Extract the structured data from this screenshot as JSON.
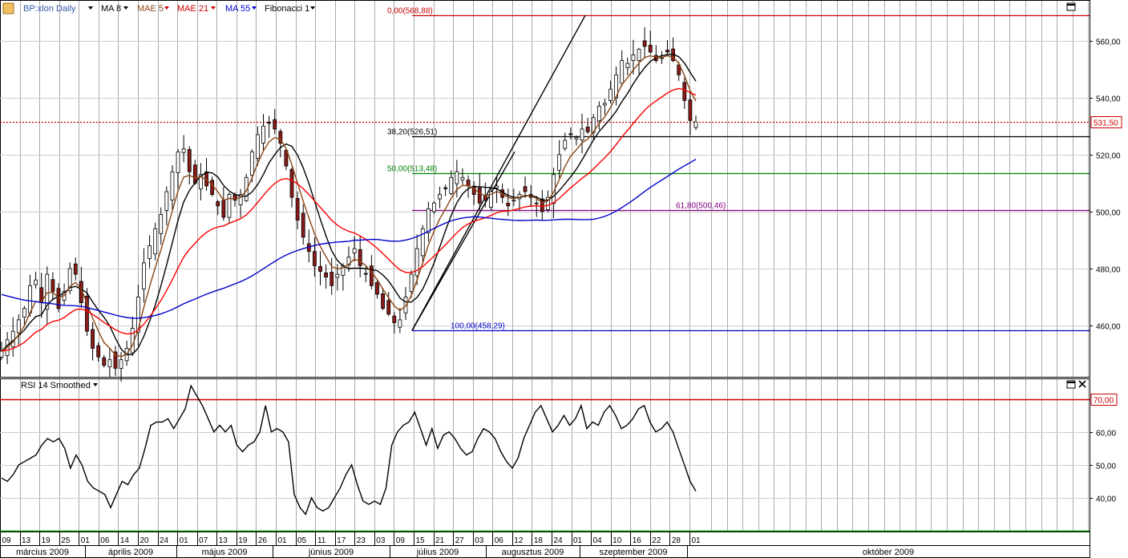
{
  "toolbar": {
    "symbol": "BP:xlon Daily",
    "ma8": "MA 8",
    "mae5": "MAE 5",
    "mae21": "MAE 21",
    "ma55": "MA 55",
    "fib": "Fibonacci 1",
    "rsi": "RSI 14 Smoothed"
  },
  "colors": {
    "bull": "#ffffff",
    "bear": "#8b1a1a",
    "ma8": "#000000",
    "mae5": "#8b4513",
    "mae21": "#ff0000",
    "ma55": "#0000cc",
    "fib0": "#cc0000",
    "fib382": "#000000",
    "fib50": "#008000",
    "fib618": "#800080",
    "fib100": "#0000cc",
    "grid": "#aaaaaa",
    "rsi": "#000000",
    "rsiLevel70": "#cc0000",
    "rsiLevel30": "#008000",
    "lastPrice": "#cc0000"
  },
  "price_axis": {
    "ylim": [
      442,
      574
    ],
    "ticks": [
      "460,00",
      "480,00",
      "500,00",
      "520,00",
      "540,00",
      "560,00"
    ],
    "tick_values": [
      460,
      480,
      500,
      520,
      540,
      560
    ],
    "last_price": 531.5,
    "last_price_label": "531,50"
  },
  "rsi_axis": {
    "ylim": [
      30,
      76
    ],
    "ticks": [
      "40,00",
      "50,00",
      "60,00"
    ],
    "tick_values": [
      40,
      50,
      60
    ],
    "level_70": 70,
    "level_70_label": "70,00",
    "level_30": 30
  },
  "x_axis": {
    "days": [
      "09",
      "13",
      "19",
      "25",
      "01",
      "06",
      "14",
      "20",
      "24",
      "01",
      "07",
      "13",
      "19",
      "26",
      "01",
      "05",
      "11",
      "17",
      "23",
      "03",
      "09",
      "15",
      "21",
      "27",
      "03",
      "06",
      "12",
      "18",
      "24",
      "01",
      "04",
      "10",
      "16",
      "22",
      "28",
      "01"
    ],
    "months": [
      "március 2009",
      "április 2009",
      "május 2009",
      "június 2009",
      "július 2009",
      "augusztus 2009",
      "szeptember 2009",
      "október 2009"
    ]
  },
  "chart_data": {
    "type": "candlestick",
    "title": "BP:xlon Daily",
    "fibonacci": [
      {
        "label": "0,00(568,88)",
        "value": 568.88
      },
      {
        "label": "38,20(526,51)",
        "value": 526.51
      },
      {
        "label": "50,00(513,48)",
        "value": 513.48
      },
      {
        "label": "61,80(500,46)",
        "value": 500.46
      },
      {
        "label": "100,00(458,29)",
        "value": 458.29
      }
    ],
    "closes": [
      451,
      455,
      458,
      462,
      466,
      474,
      476,
      468,
      478,
      472,
      466,
      472,
      480,
      478,
      468,
      458,
      452,
      449,
      446,
      448,
      445,
      448,
      452,
      459,
      470,
      482,
      488,
      494,
      499,
      507,
      514,
      521,
      522,
      514,
      510,
      513,
      509,
      506,
      502,
      498,
      506,
      504,
      506,
      512,
      521,
      527,
      530,
      531,
      529,
      524,
      516,
      505,
      497,
      491,
      486,
      481,
      479,
      477,
      474,
      478,
      481,
      484,
      487,
      481,
      478,
      474,
      471,
      466,
      464,
      461,
      462,
      470,
      478,
      487,
      494,
      501,
      503,
      506,
      508,
      512,
      514,
      512,
      509,
      506,
      503,
      504,
      507,
      509,
      505,
      502,
      504,
      506,
      507,
      505,
      503,
      500,
      505,
      513,
      520,
      525,
      527,
      526,
      529,
      528,
      533,
      537,
      538,
      543,
      548,
      553,
      552,
      555,
      557,
      558,
      556,
      553,
      554,
      556,
      553,
      548,
      539,
      532,
      531.5
    ],
    "rsi": [
      46,
      45,
      47,
      50,
      51,
      52,
      53,
      56,
      58,
      57,
      58,
      55,
      49,
      53,
      50,
      45,
      43,
      42,
      41,
      37,
      41,
      45,
      44,
      47,
      49,
      55,
      62,
      63,
      63,
      64,
      61,
      64,
      67,
      74,
      71,
      68,
      64,
      60,
      62,
      60,
      62,
      56,
      54,
      56,
      57,
      60,
      68,
      60,
      61,
      60,
      57,
      41,
      37,
      35,
      40,
      37,
      36,
      37,
      40,
      43,
      47,
      50,
      44,
      39,
      38,
      39,
      38,
      43,
      56,
      60,
      62,
      63,
      66,
      61,
      56,
      61,
      55,
      59,
      60,
      58,
      55,
      53,
      54,
      58,
      61,
      60,
      58,
      54,
      51,
      49,
      52,
      58,
      62,
      66,
      68,
      64,
      60,
      62,
      65,
      62,
      64,
      68,
      61,
      63,
      62,
      66,
      68,
      65,
      61,
      62,
      64,
      67,
      68,
      63,
      60,
      61,
      63,
      60,
      55,
      50,
      45,
      42
    ]
  }
}
